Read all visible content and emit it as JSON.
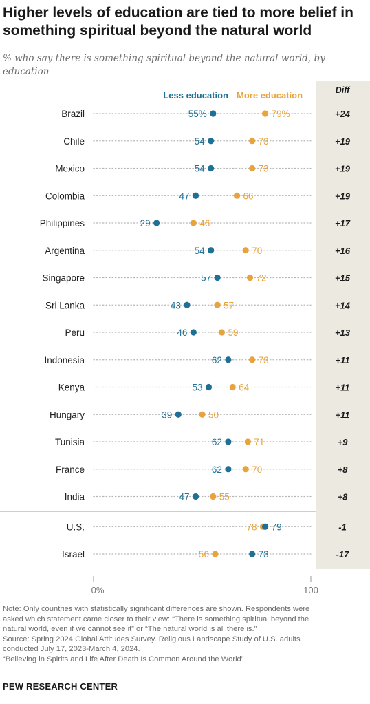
{
  "title": "Higher levels of education are tied to more belief in something spiritual beyond the natural world",
  "subtitle": "% who say there is something spiritual beyond the natural world, by education",
  "chart_data": {
    "type": "dot",
    "legend": {
      "less": "Less education",
      "more": "More education"
    },
    "diff_header": "Diff",
    "categories": [
      "Brazil",
      "Chile",
      "Mexico",
      "Colombia",
      "Philippines",
      "Argentina",
      "Singapore",
      "Sri Lanka",
      "Peru",
      "Indonesia",
      "Kenya",
      "Hungary",
      "Tunisia",
      "France",
      "India",
      "U.S.",
      "Israel"
    ],
    "series": [
      {
        "name": "Less education",
        "values": [
          55,
          54,
          54,
          47,
          29,
          54,
          57,
          43,
          46,
          62,
          53,
          39,
          62,
          62,
          47,
          79,
          73
        ]
      },
      {
        "name": "More education",
        "values": [
          79,
          73,
          73,
          66,
          46,
          70,
          72,
          57,
          59,
          73,
          64,
          50,
          71,
          70,
          55,
          78,
          56
        ]
      }
    ],
    "diff": [
      "+24",
      "+19",
      "+19",
      "+19",
      "+17",
      "+16",
      "+15",
      "+14",
      "+13",
      "+11",
      "+11",
      "+11",
      "+9",
      "+8",
      "+8",
      "-1",
      "-17"
    ],
    "percent_sign_on_first_row": true,
    "separator_after_index": 14,
    "xlim": [
      0,
      100
    ],
    "x_tick_labels": [
      "0%",
      "100"
    ],
    "colors": {
      "less": "#1f7096",
      "more": "#e8a33d",
      "diff_bg": "#ece9e1",
      "dots_line": "#b5b5b5"
    }
  },
  "notes": [
    "Note: Only countries with statistically significant differences are shown. Respondents were",
    "asked which statement came closer to their view: “There is something spiritual beyond the",
    "natural world, even if we cannot see it” or “The natural world is all there is.”",
    "Source: Spring 2024 Global Attitudes Survey. Religious Landscape Study of U.S. adults",
    "conducted July 17, 2023-March 4, 2024.",
    "“Believing in Spirits and Life After Death Is Common Around the World”"
  ],
  "source_org": "PEW RESEARCH CENTER"
}
